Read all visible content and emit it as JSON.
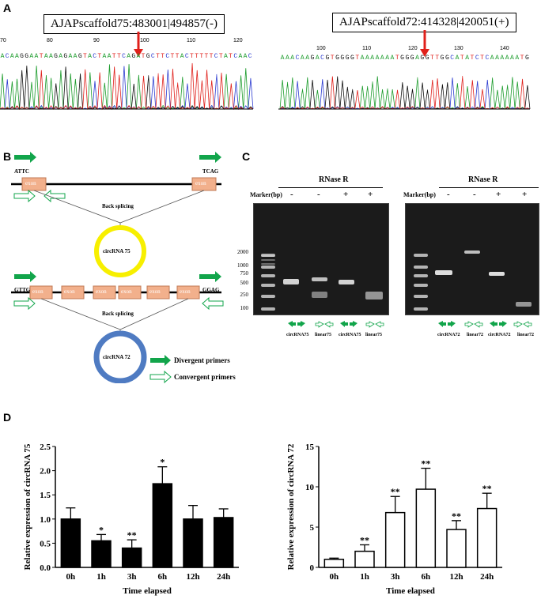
{
  "panels": {
    "A": {
      "letter": "A",
      "left": {
        "label": "AJAPscaffold75:483001|494857(-)",
        "ticks": [
          "70",
          "80",
          "90",
          "100",
          "110",
          "120"
        ],
        "sequence": "ACAAGGAATAAGAGAAGTACTAATTCAGATGCTTCTTACTTTTTCTATCAAC"
      },
      "right": {
        "label": "AJAPscaffold72:414328|420051(+)",
        "ticks": [
          "100",
          "110",
          "120",
          "130",
          "140"
        ],
        "sequence": "AAACAAGACGTGGGGTAAAAAAATGGGAGGTTGGCATATCTCAAAAAATG"
      }
    },
    "B": {
      "letter": "B",
      "top": {
        "left_seq": "ATTC",
        "right_seq": "TCAG",
        "exon": "exon",
        "back_splicing": "Back splicing",
        "circ": "circRNA 75"
      },
      "bottom": {
        "left_seq": "GTTG",
        "right_seq": "GGAG",
        "exons": [
          "exon",
          "exon",
          "exon",
          "exon",
          "exon",
          "exon"
        ],
        "back_splicing": "Back splicing",
        "circ": "circRNA 72"
      },
      "legend": {
        "divergent": "Divergent primers",
        "convergent": "Convergent primers"
      },
      "colors": {
        "exon": "#f2b08c",
        "circ75": "#f7ef00",
        "circ72": "#4f7bc2",
        "primer": "#12a54b"
      }
    },
    "C": {
      "letter": "C",
      "rnase_label": "RNase R",
      "marker_label": "Marker(bp)",
      "marker_sizes": [
        "2000",
        "1000",
        "750",
        "500",
        "250",
        "100"
      ],
      "left_gel": {
        "signs": [
          "-",
          "-",
          "+",
          "+"
        ],
        "lanes": [
          "circRNA75",
          "linear75",
          "circRNA75",
          "linear75"
        ]
      },
      "right_gel": {
        "signs": [
          "-",
          "-",
          "+",
          "+"
        ],
        "lanes": [
          "circRNA72",
          "linear72",
          "circRNA72",
          "linear72"
        ]
      }
    },
    "D": {
      "letter": "D"
    }
  },
  "chart_data": [
    {
      "type": "bar",
      "categories": [
        "0h",
        "1h",
        "3h",
        "6h",
        "12h",
        "24h"
      ],
      "values": [
        1.0,
        0.55,
        0.4,
        1.73,
        1.0,
        1.03
      ],
      "errors": [
        0.23,
        0.13,
        0.17,
        0.35,
        0.28,
        0.18
      ],
      "significance": [
        "",
        "*",
        "**",
        "*",
        "",
        ""
      ],
      "xlabel": "Time elapsed",
      "ylabel": "Relative expression of circRNA 75",
      "ylim": [
        0,
        2.5
      ],
      "yticks": [
        "0.0",
        "0.5",
        "1.0",
        "1.5",
        "2.0",
        "2.5"
      ],
      "bar_fill": "#000000"
    },
    {
      "type": "bar",
      "categories": [
        "0h",
        "1h",
        "3h",
        "6h",
        "12h",
        "24h"
      ],
      "values": [
        1.0,
        2.0,
        6.8,
        9.7,
        4.7,
        7.3
      ],
      "errors": [
        0.15,
        0.8,
        2.0,
        2.6,
        1.1,
        1.9
      ],
      "significance": [
        "",
        "**",
        "**",
        "**",
        "**",
        "**"
      ],
      "xlabel": "Time elapsed",
      "ylabel": "Relative expression of circRNA 72",
      "ylim": [
        0,
        15
      ],
      "yticks": [
        "0",
        "5",
        "10",
        "15"
      ],
      "bar_fill": "#ffffff"
    }
  ]
}
